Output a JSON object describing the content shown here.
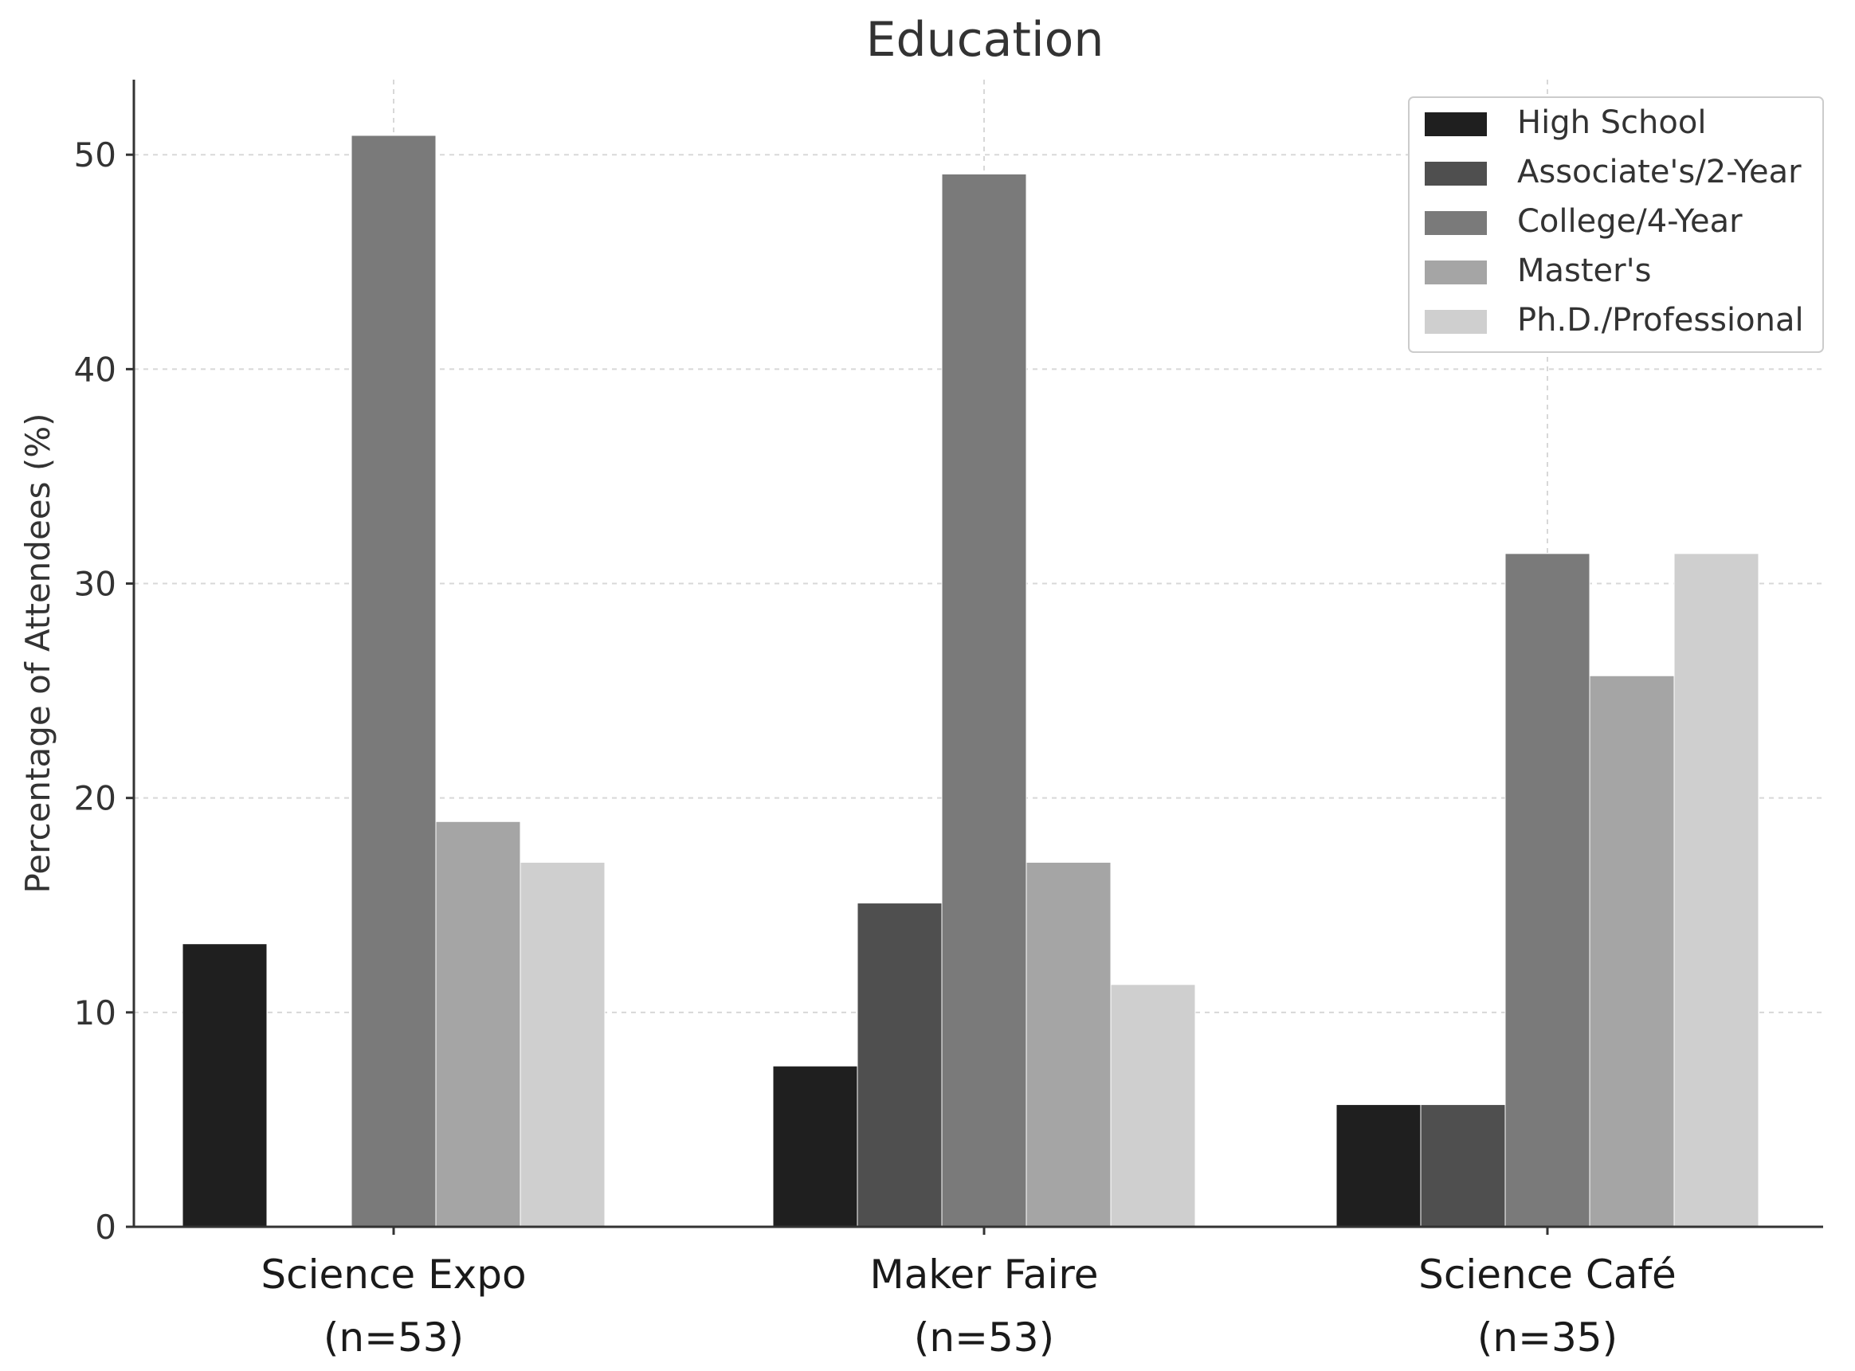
{
  "chart_data": {
    "type": "bar",
    "title": "Education",
    "ylabel": "Percentage of Attendees (%)",
    "xlabel": "",
    "ylim": [
      0,
      53.5
    ],
    "yticks": [
      0,
      10,
      20,
      30,
      40,
      50
    ],
    "grid": true,
    "legend_position": "top-right",
    "categories": [
      {
        "name": "Science Expo",
        "n": "(n=53)"
      },
      {
        "name": "Maker Faire",
        "n": "(n=53)"
      },
      {
        "name": "Science Café",
        "n": "(n=35)"
      }
    ],
    "series": [
      {
        "name": "High School",
        "color": "#1f1f1f",
        "values": [
          13.2,
          7.5,
          5.7
        ]
      },
      {
        "name": "Associate's/2-Year",
        "color": "#4f4f4f",
        "values": [
          0,
          15.1,
          5.7
        ]
      },
      {
        "name": "College/4-Year",
        "color": "#7a7a7a",
        "values": [
          50.9,
          49.1,
          31.4
        ]
      },
      {
        "name": "Master's",
        "color": "#a5a5a5",
        "values": [
          18.9,
          17.0,
          25.7
        ]
      },
      {
        "name": "Ph.D./Professional",
        "color": "#cfcfcf",
        "values": [
          17.0,
          11.3,
          31.4
        ]
      }
    ]
  }
}
